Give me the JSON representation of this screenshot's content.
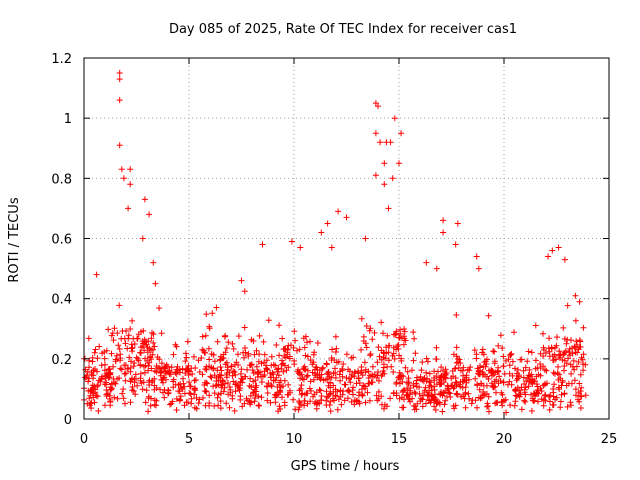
{
  "chart_data": {
    "type": "scatter",
    "title": "Day 085 of 2025, Rate Of TEC Index for receiver cas1",
    "xlabel": "GPS time / hours",
    "ylabel": "ROTI / TECUs",
    "xlim": [
      0,
      25
    ],
    "ylim": [
      0,
      1.2
    ],
    "x_ticks": [
      "0",
      "5",
      "10",
      "15",
      "20",
      "25"
    ],
    "y_ticks": [
      "0",
      "0.2",
      "0.4",
      "0.6",
      "0.8",
      "1",
      "1.2"
    ],
    "grid": true,
    "marker": "plus",
    "color": "#ff0000",
    "series": [
      {
        "name": "ROTI",
        "note": "dense cloud of points across 0-24 h, baseline mostly 0.05-0.30 TECU",
        "peaks": [
          {
            "x": 1.7,
            "y": 1.15
          },
          {
            "x": 1.7,
            "y": 1.13
          },
          {
            "x": 1.7,
            "y": 1.06
          },
          {
            "x": 1.7,
            "y": 0.91
          },
          {
            "x": 1.8,
            "y": 0.83
          },
          {
            "x": 1.9,
            "y": 0.8
          },
          {
            "x": 2.2,
            "y": 0.83
          },
          {
            "x": 2.2,
            "y": 0.78
          },
          {
            "x": 2.1,
            "y": 0.7
          },
          {
            "x": 2.9,
            "y": 0.73
          },
          {
            "x": 3.1,
            "y": 0.68
          },
          {
            "x": 2.8,
            "y": 0.6
          },
          {
            "x": 3.3,
            "y": 0.52
          },
          {
            "x": 3.4,
            "y": 0.45
          },
          {
            "x": 0.6,
            "y": 0.48
          },
          {
            "x": 8.5,
            "y": 0.58
          },
          {
            "x": 7.5,
            "y": 0.46
          },
          {
            "x": 9.9,
            "y": 0.59
          },
          {
            "x": 10.3,
            "y": 0.57
          },
          {
            "x": 11.3,
            "y": 0.62
          },
          {
            "x": 11.6,
            "y": 0.65
          },
          {
            "x": 11.8,
            "y": 0.57
          },
          {
            "x": 12.1,
            "y": 0.69
          },
          {
            "x": 12.5,
            "y": 0.67
          },
          {
            "x": 13.4,
            "y": 0.6
          },
          {
            "x": 13.9,
            "y": 1.05
          },
          {
            "x": 14.0,
            "y": 1.04
          },
          {
            "x": 13.9,
            "y": 0.95
          },
          {
            "x": 14.1,
            "y": 0.92
          },
          {
            "x": 14.4,
            "y": 0.92
          },
          {
            "x": 14.6,
            "y": 0.92
          },
          {
            "x": 14.8,
            "y": 1.0
          },
          {
            "x": 15.1,
            "y": 0.95
          },
          {
            "x": 14.3,
            "y": 0.85
          },
          {
            "x": 15.0,
            "y": 0.85
          },
          {
            "x": 13.9,
            "y": 0.81
          },
          {
            "x": 14.7,
            "y": 0.8
          },
          {
            "x": 14.3,
            "y": 0.78
          },
          {
            "x": 14.5,
            "y": 0.7
          },
          {
            "x": 16.3,
            "y": 0.52
          },
          {
            "x": 17.1,
            "y": 0.66
          },
          {
            "x": 17.1,
            "y": 0.62
          },
          {
            "x": 17.8,
            "y": 0.65
          },
          {
            "x": 17.7,
            "y": 0.58
          },
          {
            "x": 16.8,
            "y": 0.5
          },
          {
            "x": 18.7,
            "y": 0.54
          },
          {
            "x": 18.8,
            "y": 0.5
          },
          {
            "x": 22.1,
            "y": 0.54
          },
          {
            "x": 22.3,
            "y": 0.56
          },
          {
            "x": 22.6,
            "y": 0.57
          },
          {
            "x": 22.9,
            "y": 0.53
          },
          {
            "x": 23.4,
            "y": 0.41
          },
          {
            "x": 23.6,
            "y": 0.39
          }
        ]
      }
    ]
  }
}
